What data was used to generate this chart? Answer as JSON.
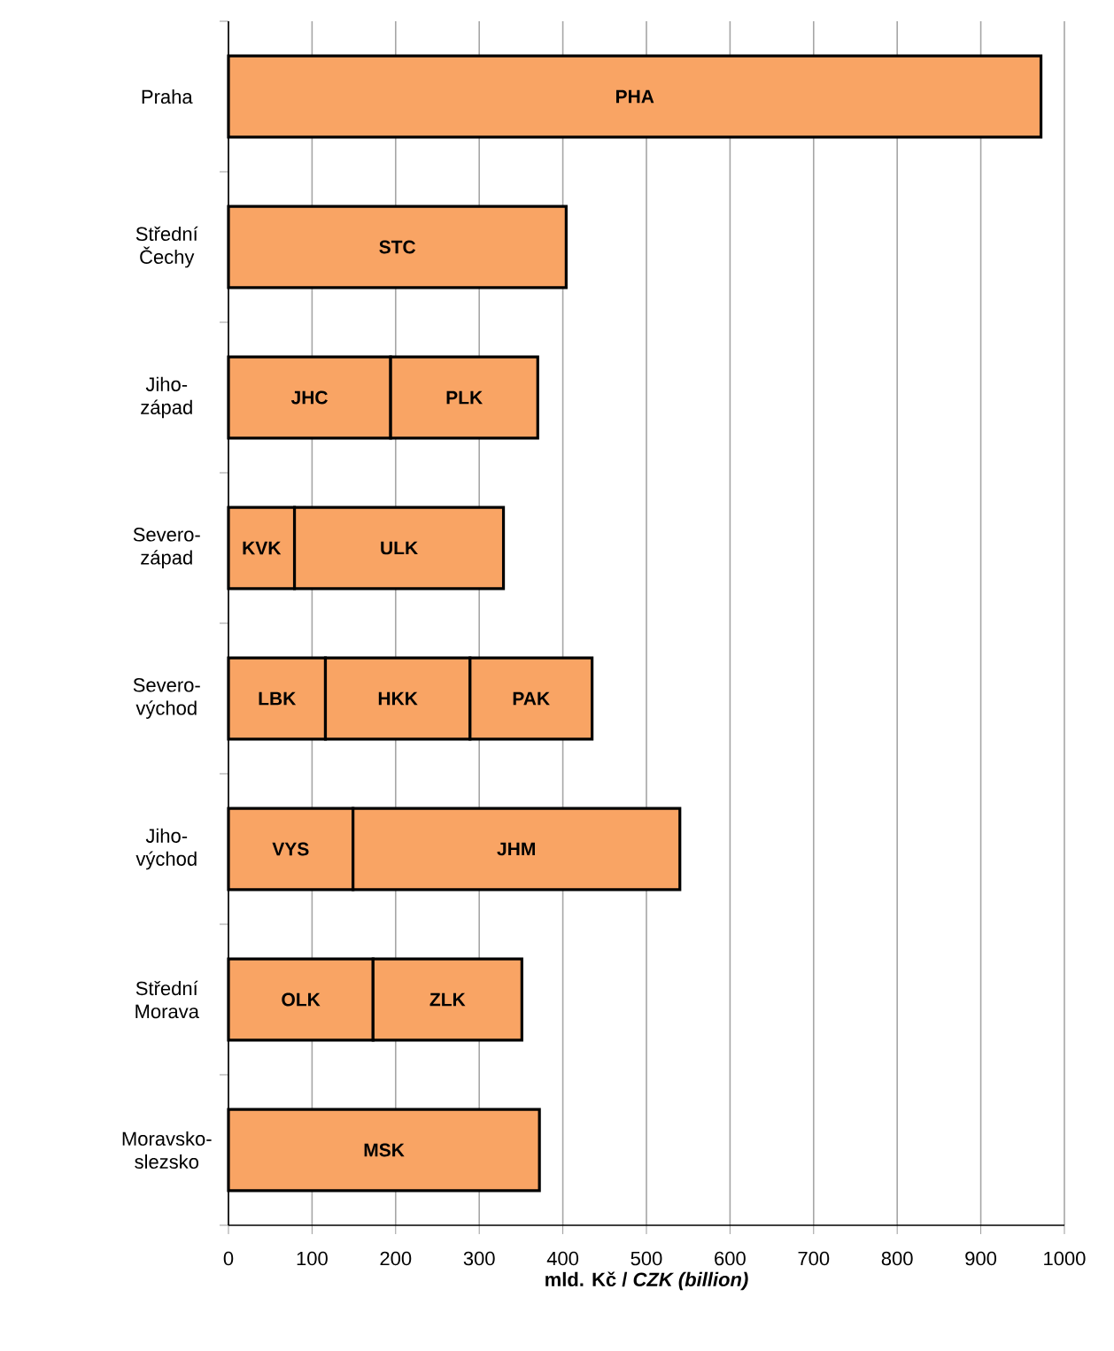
{
  "chart_data": {
    "type": "bar",
    "orientation": "horizontal",
    "stacked": true,
    "xlabel": "mld. Kč / *CZK (billion)*",
    "categories": [
      "Praha",
      "Střední Čechy",
      "Jiho-západ",
      "Severo-západ",
      "Severo-východ",
      "Jiho-východ",
      "Střední Morava",
      "Moravsko-slezsko"
    ],
    "series": [
      {
        "color": "#f9a464",
        "values": [
          972,
          404,
          194,
          79,
          116,
          149,
          173,
          372
        ],
        "value_labels": [
          "PHA",
          "STC",
          "JHC",
          "KVK",
          "LBK",
          "VYS",
          "OLK",
          "MSK"
        ]
      },
      {
        "color": "#f9a464",
        "values": [
          null,
          null,
          176,
          250,
          173,
          391,
          178,
          null
        ],
        "value_labels": [
          null,
          null,
          "PLK",
          "ULK",
          "HKK",
          "JHM",
          "ZLK",
          null
        ]
      },
      {
        "color": "#f9a464",
        "values": [
          null,
          null,
          null,
          null,
          146,
          null,
          null,
          null
        ],
        "value_labels": [
          null,
          null,
          null,
          null,
          "PAK",
          null,
          null,
          null
        ]
      }
    ],
    "xlim": [
      0,
      1000
    ],
    "xticks": [
      0,
      100,
      200,
      300,
      400,
      500,
      600,
      700,
      800,
      900,
      1000
    ],
    "grid": "x"
  }
}
